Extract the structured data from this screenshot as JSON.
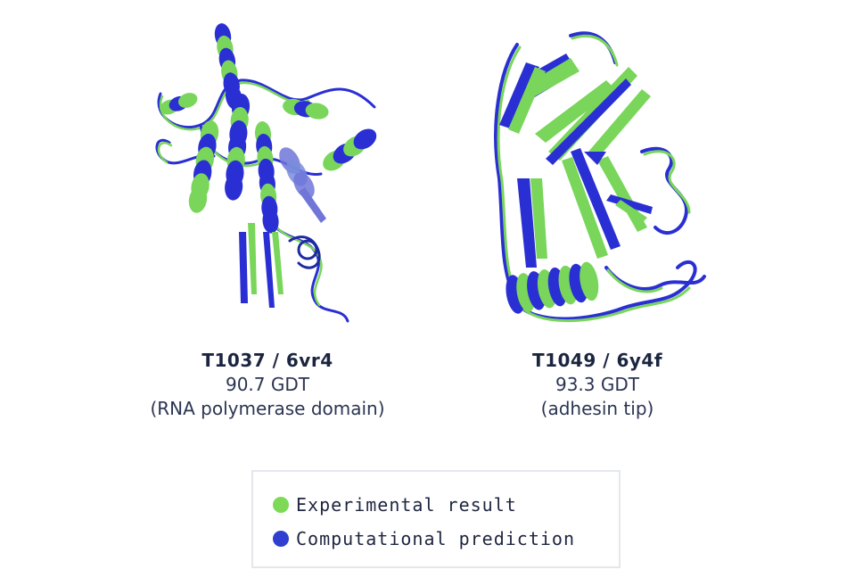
{
  "structures": [
    {
      "target": "T1037 / 6vr4",
      "score": "90.7 GDT",
      "description": "(RNA polymerase domain)"
    },
    {
      "target": "T1049 / 6y4f",
      "score": "93.3 GDT",
      "description": "(adhesin tip)"
    }
  ],
  "legend": {
    "items": [
      {
        "label": "Experimental result",
        "color": "#7ed957"
      },
      {
        "label": "Computational prediction",
        "color": "#2f3fd0"
      }
    ]
  },
  "colors": {
    "experimental": "#7ed957",
    "prediction": "#2b2fd6",
    "text": "#1f2a44"
  }
}
